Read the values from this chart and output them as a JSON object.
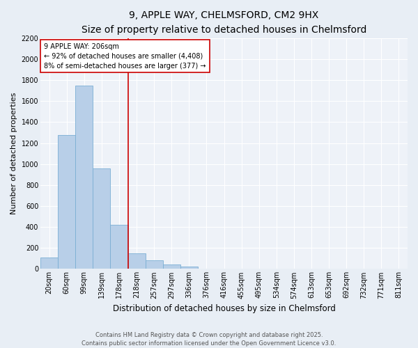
{
  "title1": "9, APPLE WAY, CHELMSFORD, CM2 9HX",
  "title2": "Size of property relative to detached houses in Chelmsford",
  "xlabel": "Distribution of detached houses by size in Chelmsford",
  "ylabel": "Number of detached properties",
  "categories": [
    "20sqm",
    "60sqm",
    "99sqm",
    "139sqm",
    "178sqm",
    "218sqm",
    "257sqm",
    "297sqm",
    "336sqm",
    "376sqm",
    "416sqm",
    "455sqm",
    "495sqm",
    "534sqm",
    "574sqm",
    "613sqm",
    "653sqm",
    "692sqm",
    "732sqm",
    "771sqm",
    "811sqm"
  ],
  "values": [
    110,
    1280,
    1750,
    960,
    420,
    150,
    80,
    40,
    20,
    0,
    0,
    0,
    0,
    0,
    0,
    0,
    0,
    0,
    0,
    0,
    0
  ],
  "bar_color": "#b8cfe8",
  "bar_edge_color": "#7aaed4",
  "vline_x_index": 4.5,
  "vline_color": "#cc0000",
  "ylim": [
    0,
    2200
  ],
  "yticks": [
    0,
    200,
    400,
    600,
    800,
    1000,
    1200,
    1400,
    1600,
    1800,
    2000,
    2200
  ],
  "annotation_text": "9 APPLE WAY: 206sqm\n← 92% of detached houses are smaller (4,408)\n8% of semi-detached houses are larger (377) →",
  "annotation_box_color": "#ffffff",
  "annotation_box_edge_color": "#cc0000",
  "footer1": "Contains HM Land Registry data © Crown copyright and database right 2025.",
  "footer2": "Contains public sector information licensed under the Open Government Licence v3.0.",
  "bg_color": "#e8eef5",
  "plot_bg_color": "#eef2f8",
  "grid_color": "#ffffff",
  "title1_fontsize": 10,
  "title2_fontsize": 9,
  "tick_fontsize": 7,
  "ylabel_fontsize": 8,
  "xlabel_fontsize": 8.5,
  "annotation_fontsize": 7,
  "footer_fontsize": 6
}
